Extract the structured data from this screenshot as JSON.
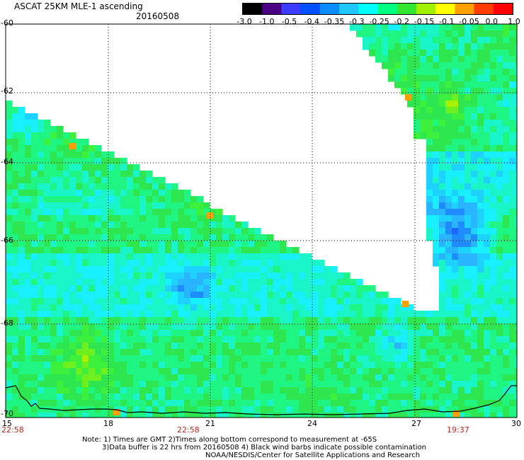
{
  "header": {
    "title": "ASCAT 25KM MLE-1 ascending",
    "date": "20160508"
  },
  "colorbar": {
    "labels": [
      "-3.0",
      "-1.0",
      "-0.5",
      "-0.4",
      "-0.35",
      "-0.3",
      "-0.25",
      "-0.2",
      "-0.15",
      "-0.1",
      "-0.05",
      "0.0",
      "1.0"
    ],
    "colors": [
      "#000000",
      "#4b0082",
      "#3c3cff",
      "#0050ff",
      "#0a8cff",
      "#1ec8ff",
      "#00ffff",
      "#00ff80",
      "#32e632",
      "#a0f000",
      "#ffff00",
      "#ffa000",
      "#ff3c00",
      "#ff0000"
    ]
  },
  "map": {
    "lat_labels": [
      "-60",
      "-62",
      "-64",
      "-66",
      "-68",
      "-70"
    ],
    "lon_labels": [
      "15",
      "18",
      "21",
      "24",
      "27",
      "30"
    ],
    "time_labels": [
      "22:58",
      "22:58",
      "19:37"
    ]
  },
  "footer": {
    "note_line1": "Note: 1) Times are GMT 2)Times along bottom correspond to measurement at -65S",
    "note_line2": "3)Data buffer is 22 hrs from 20160508 4) Black wind barbs indicate possible contamination",
    "credit": "NOAA/NESDIS/Center for Satellite Applications and Research"
  }
}
